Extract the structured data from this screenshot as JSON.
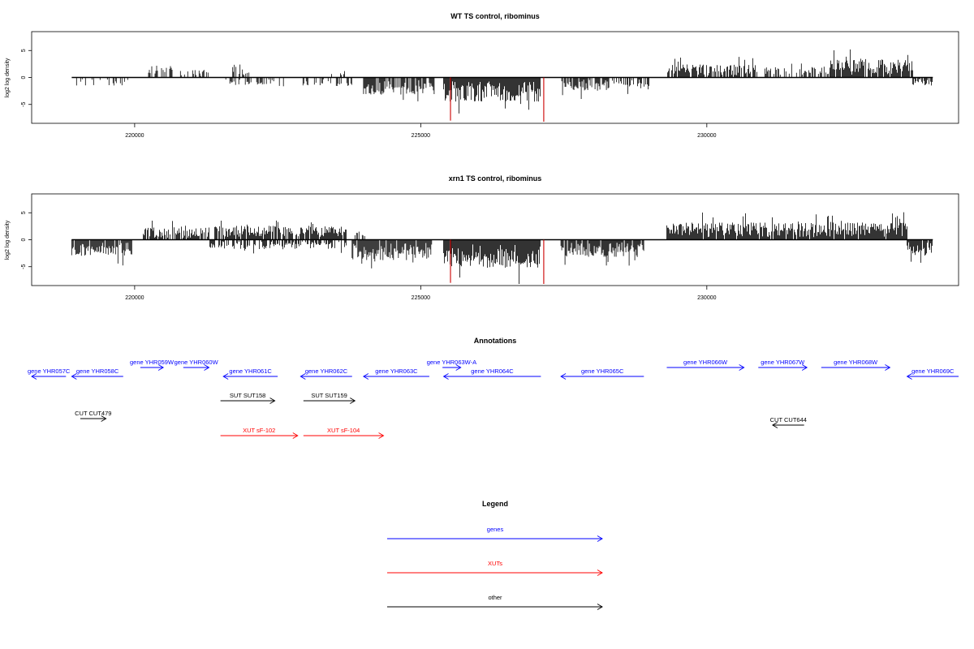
{
  "colors": {
    "genes": "#0000ff",
    "xuts": "#ff0000",
    "other": "#000000",
    "highlight": "#cc0000"
  },
  "chart_data": [
    {
      "type": "bar",
      "title": "WT TS control, ribominus",
      "ylabel": "log2 log density",
      "xlim": [
        218200,
        234400
      ],
      "ylim": [
        -8.5,
        8.5
      ],
      "xticks": [
        220000,
        225000,
        230000
      ],
      "yticks": [
        -5,
        0,
        5
      ],
      "segments": [
        {
          "x0": 218900,
          "x1": 219900,
          "sign": -1,
          "amp": 1.5,
          "density": 0.3
        },
        {
          "x0": 220200,
          "x1": 220700,
          "sign": 1,
          "amp": 2.2,
          "density": 0.5
        },
        {
          "x0": 220800,
          "x1": 221300,
          "sign": 1,
          "amp": 1.6,
          "density": 0.4
        },
        {
          "x0": 221550,
          "x1": 222600,
          "sign": -1,
          "amp": 1.4,
          "density": 0.3
        },
        {
          "x0": 221700,
          "x1": 222000,
          "sign": 1,
          "amp": 2.5,
          "density": 0.4
        },
        {
          "x0": 222900,
          "x1": 223800,
          "sign": -1,
          "amp": 1.6,
          "density": 0.35
        },
        {
          "x0": 223400,
          "x1": 223700,
          "sign": 1,
          "amp": 1.2,
          "density": 0.3
        },
        {
          "x0": 224000,
          "x1": 225250,
          "sign": -1,
          "amp": 3.2,
          "density": 0.85
        },
        {
          "x0": 225400,
          "x1": 227100,
          "sign": -1,
          "amp": 4.5,
          "density": 1.0
        },
        {
          "x0": 227450,
          "x1": 228300,
          "sign": -1,
          "amp": 2.5,
          "density": 0.8
        },
        {
          "x0": 228350,
          "x1": 229000,
          "sign": -1,
          "amp": 2.0,
          "density": 0.7
        },
        {
          "x0": 229300,
          "x1": 230900,
          "sign": 1,
          "amp": 2.4,
          "density": 0.7
        },
        {
          "x0": 231000,
          "x1": 232150,
          "sign": 1,
          "amp": 2.0,
          "density": 0.6
        },
        {
          "x0": 232150,
          "x1": 233600,
          "sign": 1,
          "amp": 3.3,
          "density": 0.95
        },
        {
          "x0": 233600,
          "x1": 233950,
          "sign": -1,
          "amp": 1.5,
          "density": 0.7
        }
      ],
      "red_marks": [
        {
          "x": 225520,
          "y": -8.0
        },
        {
          "x": 227150,
          "y": -8.2
        }
      ]
    },
    {
      "type": "bar",
      "title": "xrn1 TS control, ribominus",
      "ylabel": "log2 log density",
      "xlim": [
        218200,
        234400
      ],
      "ylim": [
        -8.5,
        8.5
      ],
      "xticks": [
        220000,
        225000,
        230000
      ],
      "yticks": [
        -5,
        0,
        5
      ],
      "segments": [
        {
          "x0": 218900,
          "x1": 219950,
          "sign": -1,
          "amp": 3.0,
          "density": 0.95
        },
        {
          "x0": 220150,
          "x1": 221300,
          "sign": 1,
          "amp": 2.3,
          "density": 0.8
        },
        {
          "x0": 221400,
          "x1": 223700,
          "sign": 1,
          "amp": 2.6,
          "density": 0.85
        },
        {
          "x0": 221300,
          "x1": 223700,
          "sign": -1,
          "amp": 1.8,
          "density": 0.6
        },
        {
          "x0": 223800,
          "x1": 225200,
          "sign": -1,
          "amp": 3.8,
          "density": 0.95
        },
        {
          "x0": 223850,
          "x1": 224100,
          "sign": 1,
          "amp": 1.5,
          "density": 0.4
        },
        {
          "x0": 225400,
          "x1": 227100,
          "sign": -1,
          "amp": 5.2,
          "density": 1.0
        },
        {
          "x0": 227450,
          "x1": 228900,
          "sign": -1,
          "amp": 3.2,
          "density": 0.95
        },
        {
          "x0": 229300,
          "x1": 233500,
          "sign": 1,
          "amp": 3.2,
          "density": 0.95
        },
        {
          "x0": 233500,
          "x1": 233950,
          "sign": -1,
          "amp": 3.0,
          "density": 0.95
        }
      ],
      "red_marks": [
        {
          "x": 225520,
          "y": -8.0
        },
        {
          "x": 227150,
          "y": -8.2
        }
      ]
    }
  ],
  "annotations": {
    "title": "Annotations",
    "genes": [
      {
        "label": "gene YHR057C",
        "x0": 218200,
        "x1": 218800,
        "dir": "left",
        "row": 1
      },
      {
        "label": "gene YHR058C",
        "x0": 218900,
        "x1": 219800,
        "dir": "left",
        "row": 1
      },
      {
        "label": "gene YHR059W",
        "x0": 220100,
        "x1": 220500,
        "dir": "right",
        "row": 0
      },
      {
        "label": "gene YHR060W",
        "x0": 220850,
        "x1": 221300,
        "dir": "right",
        "row": 0
      },
      {
        "label": "gene YHR061C",
        "x0": 221550,
        "x1": 222500,
        "dir": "left",
        "row": 1
      },
      {
        "label": "gene YHR062C",
        "x0": 222900,
        "x1": 223800,
        "dir": "left",
        "row": 1
      },
      {
        "label": "gene YHR063C",
        "x0": 224000,
        "x1": 225150,
        "dir": "left",
        "row": 1
      },
      {
        "label": "gene YHR063W-A",
        "x0": 225380,
        "x1": 225700,
        "dir": "right",
        "row": 0
      },
      {
        "label": "gene YHR064C",
        "x0": 225400,
        "x1": 227100,
        "dir": "left",
        "row": 1
      },
      {
        "label": "gene YHR065C",
        "x0": 227450,
        "x1": 228900,
        "dir": "left",
        "row": 1
      },
      {
        "label": "gene YHR066W",
        "x0": 229300,
        "x1": 230650,
        "dir": "right",
        "row": 0
      },
      {
        "label": "gene YHR067W",
        "x0": 230900,
        "x1": 231750,
        "dir": "right",
        "row": 0
      },
      {
        "label": "gene YHR068W",
        "x0": 232000,
        "x1": 233200,
        "dir": "right",
        "row": 0
      },
      {
        "label": "gene YHR069C",
        "x0": 233500,
        "x1": 234400,
        "dir": "left",
        "row": 1
      }
    ],
    "other": [
      {
        "label": "SUT SUT158",
        "x0": 221500,
        "x1": 222450,
        "dir": "right",
        "row": 2
      },
      {
        "label": "SUT SUT159",
        "x0": 222950,
        "x1": 223850,
        "dir": "right",
        "row": 2
      },
      {
        "label": "CUT CUT479",
        "x0": 219050,
        "x1": 219500,
        "dir": "right",
        "row": 3
      },
      {
        "label": "CUT CUT644",
        "x0": 231150,
        "x1": 231700,
        "dir": "left",
        "row": 4
      }
    ],
    "xuts": [
      {
        "label": "XUT sF-102",
        "x0": 221500,
        "x1": 222850,
        "dir": "right",
        "row": 5
      },
      {
        "label": "XUT sF-104",
        "x0": 222950,
        "x1": 224350,
        "dir": "right",
        "row": 5
      }
    ]
  },
  "legend": {
    "title": "Legend",
    "items": [
      {
        "label": "genes",
        "color": "#0000ff"
      },
      {
        "label": "XUTs",
        "color": "#ff0000"
      },
      {
        "label": "other",
        "color": "#000000"
      }
    ]
  }
}
